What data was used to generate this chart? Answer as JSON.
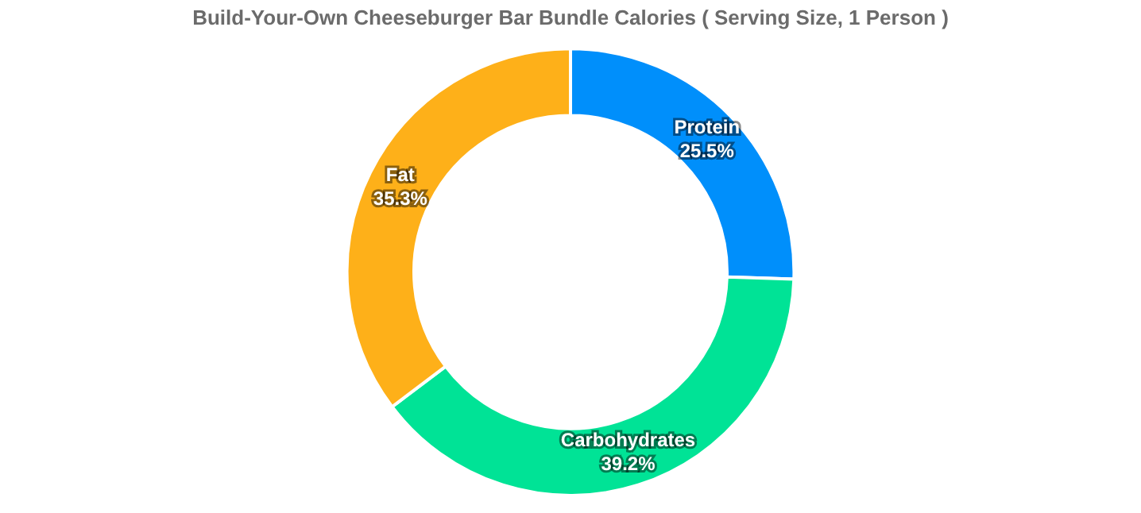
{
  "chart_data": {
    "type": "donut",
    "title": "Build-Your-Own Cheeseburger Bar Bundle Calories ( Serving Size, 1 Person )",
    "categories": [
      "Protein",
      "Carbohydrates",
      "Fat"
    ],
    "values": [
      25.5,
      39.2,
      35.3
    ],
    "value_labels": [
      "25.5%",
      "39.2%",
      "35.3%"
    ],
    "colors": [
      "#008ffb",
      "#00e396",
      "#feb019"
    ],
    "legend": false
  }
}
